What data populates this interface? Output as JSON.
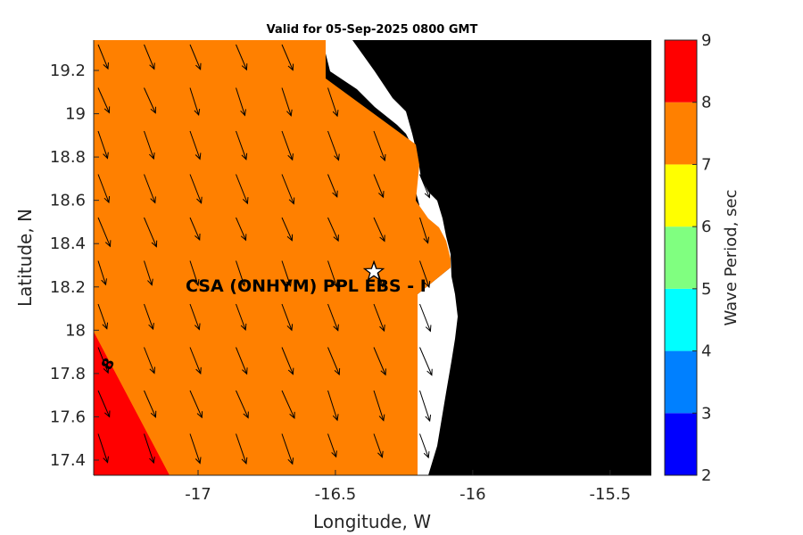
{
  "chart_data": {
    "type": "heatmap",
    "title": "Valid for 05-Sep-2025 0800 GMT",
    "xlabel": "Longitude, W",
    "ylabel": "Latitude, N",
    "xlim": [
      -17.38,
      -15.35
    ],
    "ylim": [
      17.33,
      19.34
    ],
    "xticks": [
      -17,
      -16.5,
      -16,
      -15.5
    ],
    "xtick_labels": [
      "-17",
      "-16.5",
      "-16",
      "-15.5"
    ],
    "yticks": [
      17.4,
      17.6,
      17.8,
      18,
      18.2,
      18.4,
      18.6,
      18.8,
      19,
      19.2
    ],
    "ytick_labels": [
      "17.4",
      "17.6",
      "17.8",
      "18",
      "18.2",
      "18.4",
      "18.6",
      "18.8",
      "19",
      "19.2"
    ],
    "colorbar": {
      "label": "Wave Period, sec",
      "range": [
        2,
        9
      ],
      "ticks": [
        "2",
        "3",
        "4",
        "5",
        "6",
        "7",
        "8",
        "9"
      ],
      "bins": [
        {
          "from": 2,
          "to": 3,
          "color": "#0000ff"
        },
        {
          "from": 3,
          "to": 4,
          "color": "#0080ff"
        },
        {
          "from": 4,
          "to": 5,
          "color": "#00ffff"
        },
        {
          "from": 5,
          "to": 6,
          "color": "#80ff80"
        },
        {
          "from": 6,
          "to": 7,
          "color": "#ffff00"
        },
        {
          "from": 7,
          "to": 8,
          "color": "#ff8000"
        },
        {
          "from": 8,
          "to": 9,
          "color": "#ff0000"
        }
      ]
    },
    "regions": [
      {
        "period_range": "7-8",
        "color": "#ff8000"
      },
      {
        "period_range": "8-9",
        "color": "#ff0000"
      },
      {
        "category": "land",
        "color": "#000000"
      },
      {
        "category": "no data",
        "color": "#ffffff"
      }
    ],
    "contour_label": "8",
    "annotation": {
      "text": "CSA (ONHYM) PPL EBS  - I",
      "lon": -16.36,
      "lat": 18.27
    },
    "vector_field": {
      "type": "quiver",
      "direction": "toward south-southeast"
    },
    "grid": false
  }
}
